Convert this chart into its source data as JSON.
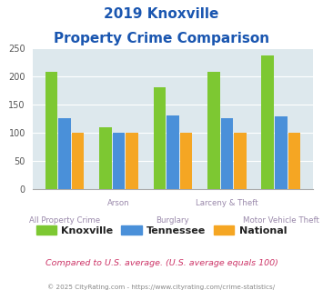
{
  "title_line1": "2019 Knoxville",
  "title_line2": "Property Crime Comparison",
  "categories": [
    "All Property Crime",
    "Arson",
    "Burglary",
    "Larceny & Theft",
    "Motor Vehicle Theft"
  ],
  "knoxville": [
    207,
    110,
    180,
    208,
    237
  ],
  "tennessee": [
    125,
    100,
    130,
    125,
    128
  ],
  "national": [
    100,
    100,
    100,
    100,
    100
  ],
  "colors": {
    "knoxville": "#7dc832",
    "tennessee": "#4a90d9",
    "national": "#f5a623"
  },
  "ylim": [
    0,
    250
  ],
  "yticks": [
    0,
    50,
    100,
    150,
    200,
    250
  ],
  "plot_bg": "#dde8ed",
  "title_color": "#1a56b0",
  "xlabel_color": "#9988aa",
  "footnote1": "Compared to U.S. average. (U.S. average equals 100)",
  "footnote2": "© 2025 CityRating.com - https://www.cityrating.com/crime-statistics/",
  "footnote1_color": "#cc3366",
  "footnote2_color": "#888888"
}
